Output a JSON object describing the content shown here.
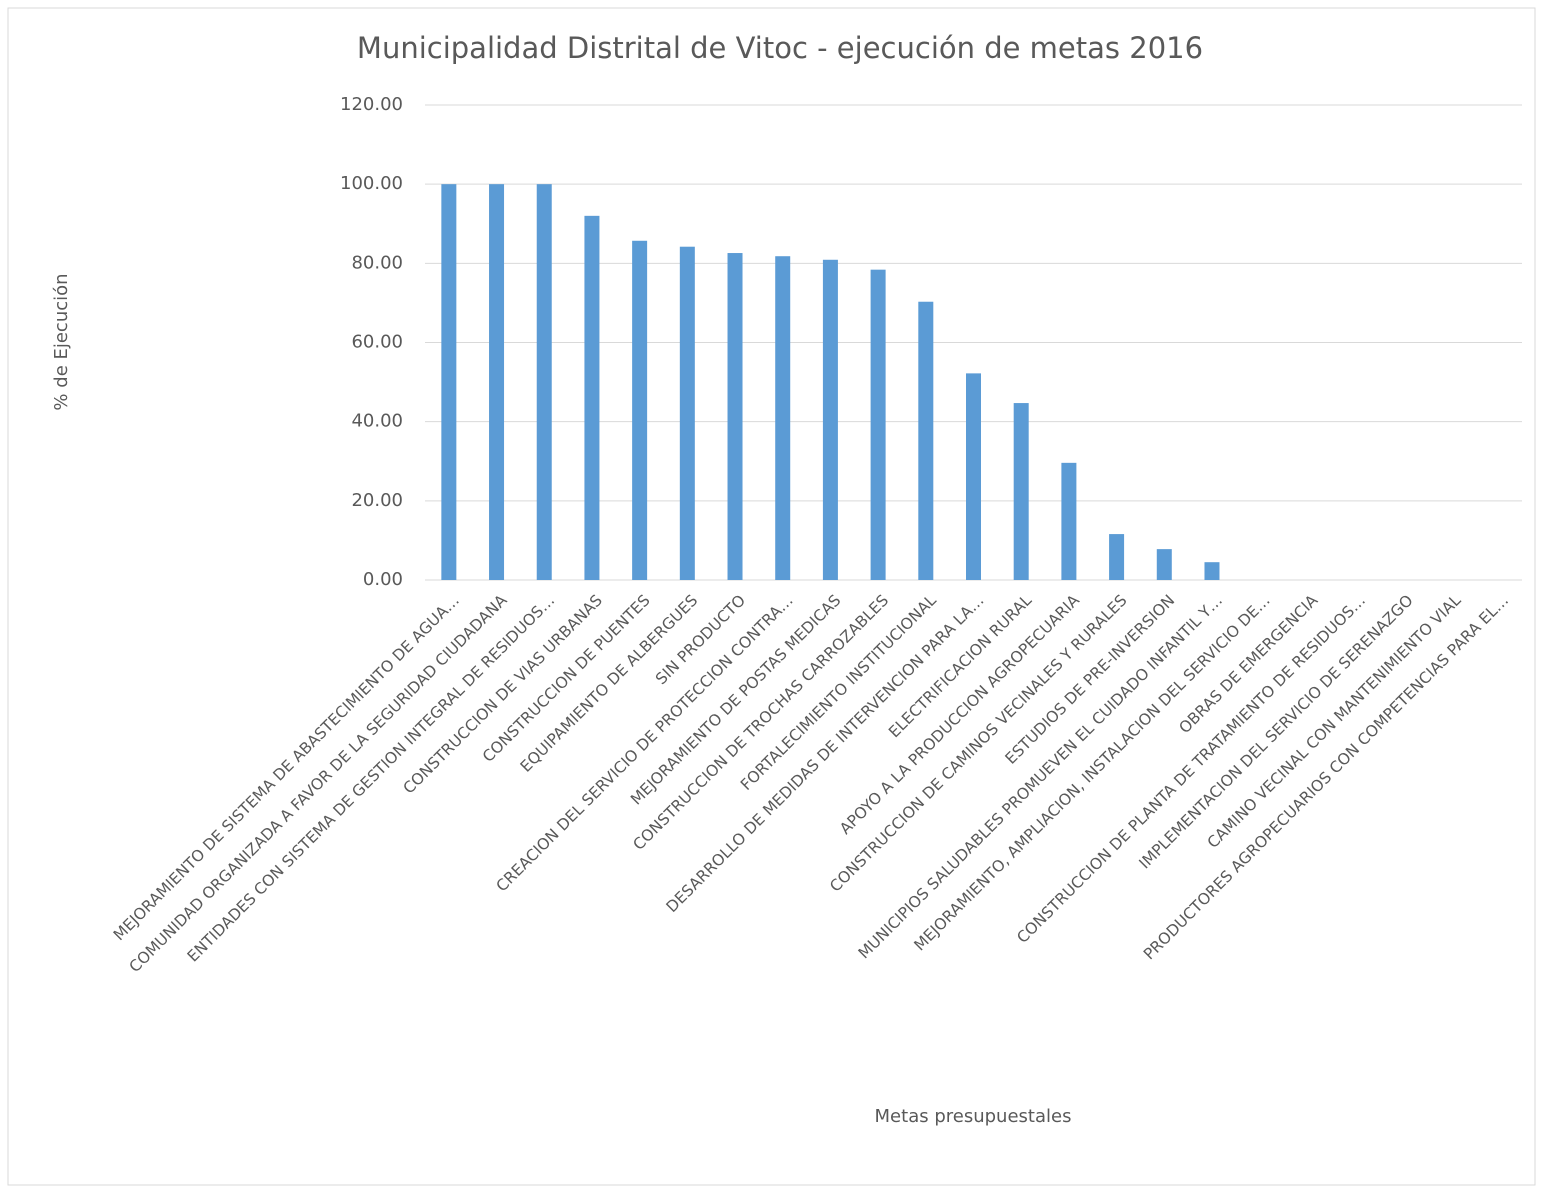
{
  "chart_data": {
    "type": "bar",
    "title": "Municipalidad Distrital de Vitoc - ejecución de metas 2016",
    "x_label": "Metas presupuestales",
    "y_label": "% de Ejecución",
    "categories": [
      "MEJORAMIENTO DE SISTEMA DE ABASTECIMIENTO DE AGUA…",
      "COMUNIDAD ORGANIZADA A FAVOR DE LA SEGURIDAD CIUDADANA",
      "ENTIDADES CON SISTEMA DE GESTION INTEGRAL DE RESIDUOS…",
      "CONSTRUCCION DE VIAS URBANAS",
      "CONSTRUCCION DE PUENTES",
      "EQUIPAMIENTO DE ALBERGUES",
      "SIN PRODUCTO",
      "CREACION DEL SERVICIO DE PROTECCION CONTRA…",
      "MEJORAMIENTO DE POSTAS MEDICAS",
      "CONSTRUCCION DE TROCHAS CARROZABLES",
      "FORTALECIMIENTO INSTITUCIONAL",
      "DESARROLLO DE MEDIDAS DE INTERVENCION PARA LA…",
      "ELECTRIFICACION RURAL",
      "APOYO A LA PRODUCCION AGROPECUARIA",
      "CONSTRUCCION DE CAMINOS VECINALES Y RURALES",
      "ESTUDIOS DE PRE-INVERSION",
      "MUNICIPIOS SALUDABLES PROMUEVEN EL CUIDADO INFANTIL Y…",
      "MEJORAMIENTO, AMPLIACION, INSTALACION DEL SERVICIO DE…",
      "OBRAS DE EMERGENCIA",
      "CONSTRUCCION DE PLANTA DE TRATAMIENTO DE RESIDUOS…",
      "IMPLEMENTACION DEL SERVICIO DE SERENAZGO",
      "CAMINO VECINAL CON MANTENIMIENTO VIAL",
      "PRODUCTORES AGROPECUARIOS CON COMPETENCIAS PARA EL…"
    ],
    "values": [
      100,
      100,
      100,
      92,
      85.7,
      84.2,
      82.6,
      81.8,
      80.9,
      78.4,
      70.3,
      52.2,
      44.7,
      29.6,
      11.6,
      7.8,
      4.5,
      0,
      0,
      0,
      0,
      0,
      0
    ],
    "color": "#5b9bd5",
    "ylim": [
      0,
      120
    ],
    "yticks": [
      {
        "value": 0,
        "label": "0.00"
      },
      {
        "value": 20,
        "label": "20.00"
      },
      {
        "value": 40,
        "label": "40.00"
      },
      {
        "value": 60,
        "label": "60.00"
      },
      {
        "value": 80,
        "label": "80.00"
      },
      {
        "value": 100,
        "label": "100.00"
      },
      {
        "value": 120,
        "label": "120.00"
      }
    ],
    "grid": true
  }
}
